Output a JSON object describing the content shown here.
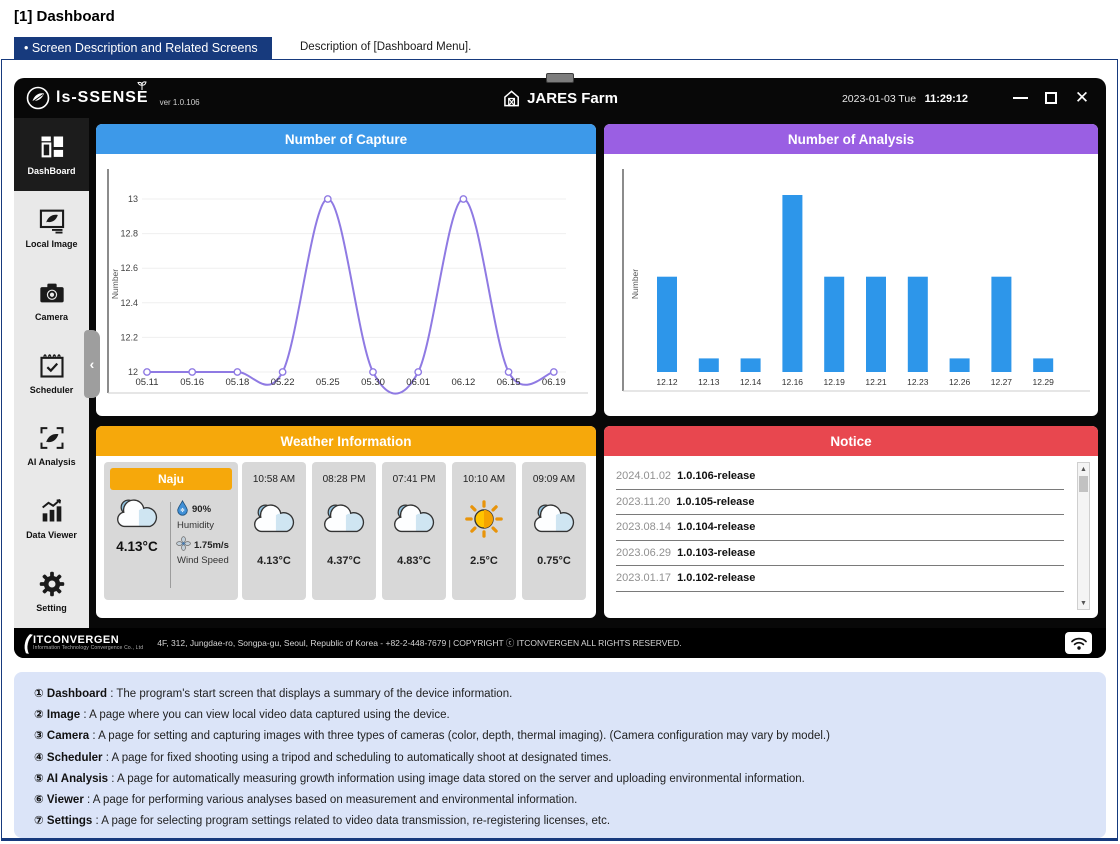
{
  "page": {
    "heading": "[1] Dashboard",
    "tab": "• Screen Description and Related Screens",
    "tab_note": "Description of [Dashboard Menu]."
  },
  "titlebar": {
    "logo": "ls-SSENSE",
    "version": "ver 1.0.106",
    "app_name": "JARES Farm",
    "date": "2023-01-03 Tue",
    "time": "11:29:12"
  },
  "sidebar": {
    "collapse_arrow": "‹",
    "items": [
      {
        "label": "DashBoard",
        "icon": "dashboard-icon",
        "selected": true
      },
      {
        "label": "Local Image",
        "icon": "local-image-icon",
        "selected": false
      },
      {
        "label": "Camera",
        "icon": "camera-icon",
        "selected": false
      },
      {
        "label": "Scheduler",
        "icon": "scheduler-icon",
        "selected": false
      },
      {
        "label": "AI Analysis",
        "icon": "ai-analysis-icon",
        "selected": false
      },
      {
        "label": "Data Viewer",
        "icon": "data-viewer-icon",
        "selected": false
      },
      {
        "label": "Setting",
        "icon": "setting-icon",
        "selected": false
      }
    ]
  },
  "panels": {
    "capture_title": "Number of Capture",
    "analysis_title": "Number of Analysis",
    "weather_title": "Weather Information",
    "notice_title": "Notice"
  },
  "colors": {
    "capture_header": "#3d99e9",
    "analysis_header": "#9a5fe3",
    "weather_header": "#f6a80b",
    "notice_header": "#e8474f",
    "line": "#8f7ae3",
    "bar": "#2d96ea"
  },
  "chart_data": [
    {
      "type": "line",
      "title": "Number of Capture",
      "categories": [
        "05.11",
        "05.16",
        "05.18",
        "05.22",
        "05.25",
        "05.30",
        "06.01",
        "06.12",
        "06.15",
        "06.19"
      ],
      "values": [
        12,
        12,
        12,
        12,
        13,
        12,
        12,
        13,
        12,
        12
      ],
      "xlabel": "",
      "ylabel": "Number",
      "yticks": [
        12,
        12.2,
        12.4,
        12.6,
        12.8,
        13
      ],
      "ylim": [
        12,
        13
      ],
      "grid": true,
      "line_color": "#8f7ae3",
      "marker": "open-circle"
    },
    {
      "type": "bar",
      "title": "Number of Analysis",
      "categories": [
        "12.12",
        "12.13",
        "12.14",
        "12.16",
        "12.19",
        "12.21",
        "12.23",
        "12.26",
        "12.27",
        "12.29"
      ],
      "values": [
        7,
        1,
        1,
        13,
        7,
        7,
        7,
        1,
        7,
        1
      ],
      "xlabel": "",
      "ylabel": "Number",
      "ylim": [
        0,
        13
      ],
      "grid": false,
      "bar_color": "#2d96ea"
    }
  ],
  "weather": {
    "location": "Naju",
    "current": {
      "icon": "cloudy",
      "temp": "4.13°C",
      "humidity": "90%",
      "humidity_label": "Humidity",
      "wind_speed": "1.75m/s",
      "wind_label": "Wind Speed"
    },
    "forecast": [
      {
        "time": "10:58 AM",
        "icon": "cloudy",
        "temp": "4.13°C"
      },
      {
        "time": "08:28 PM",
        "icon": "cloudy",
        "temp": "4.37°C"
      },
      {
        "time": "07:41 PM",
        "icon": "cloudy",
        "temp": "4.83°C"
      },
      {
        "time": "10:10 AM",
        "icon": "sunny",
        "temp": "2.5°C"
      },
      {
        "time": "09:09 AM",
        "icon": "cloudy",
        "temp": "0.75°C"
      }
    ]
  },
  "notice": {
    "items": [
      {
        "date": "2024.01.02",
        "version": "1.0.106-release"
      },
      {
        "date": "2023.11.20",
        "version": "1.0.105-release"
      },
      {
        "date": "2023.08.14",
        "version": "1.0.104-release"
      },
      {
        "date": "2023.06.29",
        "version": "1.0.103-release"
      },
      {
        "date": "2023.01.17",
        "version": "1.0.102-release"
      }
    ]
  },
  "footer": {
    "company": "ITCONVERGEN",
    "tagline": "Information Technology Convergence Co., Ltd",
    "address": "4F, 312, Jungdae-ro, Songpa-gu, Seoul, Republic of Korea - +82-2-448-7679 | COPYRIGHT ⓒ ITCONVERGEN ALL RIGHTS RESERVED."
  },
  "descriptions": {
    "separator": " : ",
    "items": [
      {
        "num": "①",
        "term": "Dashboard",
        "text": "The program's start screen that displays a summary of the device information."
      },
      {
        "num": "②",
        "term": "Image",
        "text": "A page where you can view local video data captured using the device."
      },
      {
        "num": "③",
        "term": "Camera",
        "text": "A page for setting and capturing images with three types of cameras (color, depth, thermal imaging). (Camera configuration may vary by model.)"
      },
      {
        "num": "④",
        "term": "Scheduler",
        "text": "A page for fixed shooting using a tripod and scheduling to automatically shoot at designated times."
      },
      {
        "num": "⑤",
        "term": "AI Analysis",
        "text": "A page for automatically measuring growth information using image data stored on the server and uploading environmental information."
      },
      {
        "num": "⑥",
        "term": "Viewer",
        "text": "A page for performing various analyses based on measurement and environmental information."
      },
      {
        "num": "⑦",
        "term": "Settings",
        "text": "A page for selecting program settings related to video data transmission, re-registering licenses, etc."
      }
    ]
  }
}
